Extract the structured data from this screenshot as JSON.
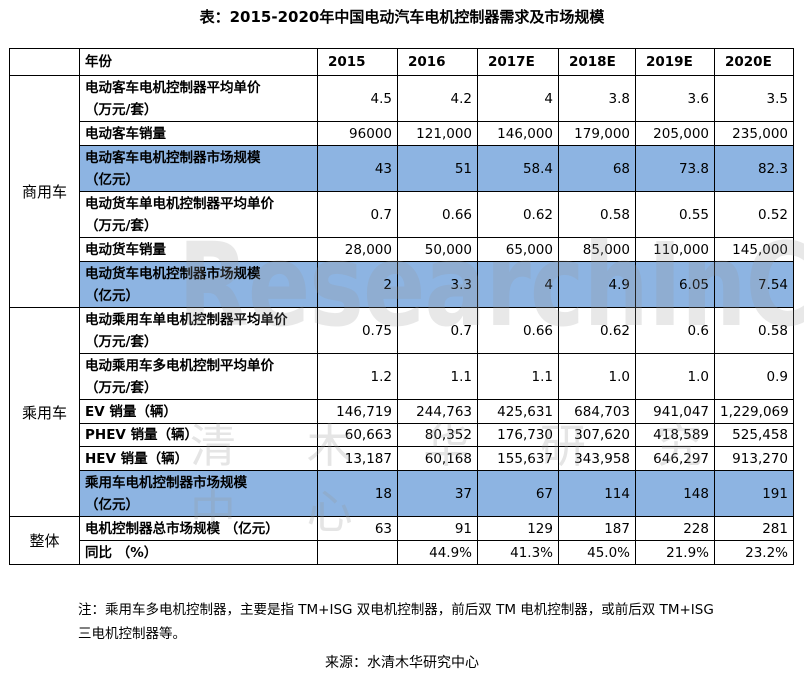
{
  "title": "表：2015-2020年中国电动汽车电机控制器需求及市场规模",
  "header": {
    "label": "年份",
    "years": [
      "2015",
      "2016",
      "2017E",
      "2018E",
      "2019E",
      "2020E"
    ]
  },
  "groups": {
    "commercial": "商用车",
    "passenger": "乘用车",
    "overall": "整体"
  },
  "rows": [
    {
      "label": [
        "电动客车电机控制器平均单价",
        "（万元/套）"
      ],
      "values": [
        "4.5",
        "4.2",
        "4",
        "3.8",
        "3.6",
        "3.5"
      ]
    },
    {
      "label": [
        "电动客车销量"
      ],
      "values": [
        "96000",
        "121,000",
        "146,000",
        "179,000",
        "205,000",
        "235,000"
      ]
    },
    {
      "label": [
        "电动客车电机控制器市场规模",
        "（亿元）"
      ],
      "values": [
        "43",
        "51",
        "58.4",
        "68",
        "73.8",
        "82.3"
      ]
    },
    {
      "label": [
        "电动货车单电机控制器平均单价",
        "（万元/套）"
      ],
      "values": [
        "0.7",
        "0.66",
        "0.62",
        "0.58",
        "0.55",
        "0.52"
      ]
    },
    {
      "label": [
        "电动货车销量"
      ],
      "values": [
        "28,000",
        "50,000",
        "65,000",
        "85,000",
        "110,000",
        "145,000"
      ]
    },
    {
      "label": [
        "电动货车电机控制器市场规模",
        "（亿元）"
      ],
      "values": [
        "2",
        "3.3",
        "4",
        "4.9",
        "6.05",
        "7.54"
      ]
    },
    {
      "label": [
        "电动乘用车单电机控制器平均单价",
        "（万元/套）"
      ],
      "values": [
        "0.75",
        "0.7",
        "0.66",
        "0.62",
        "0.6",
        "0.58"
      ]
    },
    {
      "label": [
        "电动乘用车多电机控制平均单价",
        "（万元/套）"
      ],
      "values": [
        "1.2",
        "1.1",
        "1.1",
        "1.0",
        "1.0",
        "0.9"
      ]
    },
    {
      "label": [
        "EV 销量（辆）"
      ],
      "values": [
        "146,719",
        "244,763",
        "425,631",
        "684,703",
        "941,047",
        "1,229,069"
      ]
    },
    {
      "label": [
        "PHEV 销量（辆）"
      ],
      "values": [
        "60,663",
        "80,352",
        "176,730",
        "307,620",
        "418,589",
        "525,458"
      ]
    },
    {
      "label": [
        "HEV 销量（辆）"
      ],
      "values": [
        "13,187",
        "60,168",
        "155,637",
        "343,958",
        "646,297",
        "913,270"
      ]
    },
    {
      "label": [
        "乘用车电机控制器市场规模",
        "（亿元）"
      ],
      "values": [
        "18",
        "37",
        "67",
        "114",
        "148",
        "191"
      ]
    },
    {
      "label": [
        "电机控制器总市场规模 （亿元）"
      ],
      "values": [
        "63",
        "91",
        "129",
        "187",
        "228",
        "281"
      ]
    },
    {
      "label": [
        "同比 （%）"
      ],
      "values": [
        "",
        "44.9%",
        "41.3%",
        "45.0%",
        "21.9%",
        "23.2%"
      ]
    }
  ],
  "note": [
    "注：乘用车多电机控制器，主要是指 TM+ISG 双电机控制器，前后双 TM 电机控制器，或前后双 TM+ISG",
    "三电机控制器等。"
  ],
  "source": "来源：水清木华研究中心",
  "watermark": {
    "en": "ResearchInChina",
    "cn": "清 木 华 研 究 中 心"
  },
  "colors": {
    "highlight": "#8DB4E2"
  }
}
